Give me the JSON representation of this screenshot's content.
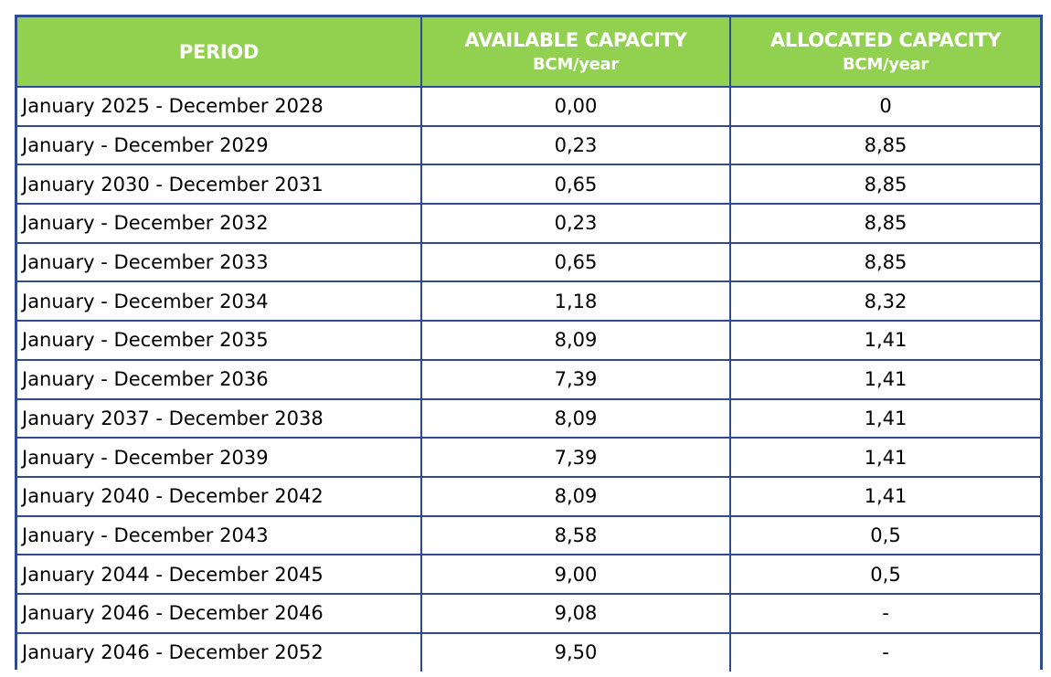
{
  "table": {
    "headers": {
      "period": "PERIOD",
      "available": "AVAILABLE CAPACITY",
      "available_unit": "BCM/year",
      "allocated": "ALLOCATED CAPACITY",
      "allocated_unit": "BCM/year"
    },
    "rows": [
      {
        "period": "January 2025 - December 2028",
        "available": "0,00",
        "allocated": "0"
      },
      {
        "period": "January - December 2029",
        "available": "0,23",
        "allocated": "8,85"
      },
      {
        "period": "January 2030 - December 2031",
        "available": "0,65",
        "allocated": "8,85"
      },
      {
        "period": "January - December 2032",
        "available": "0,23",
        "allocated": "8,85"
      },
      {
        "period": "January - December 2033",
        "available": "0,65",
        "allocated": "8,85"
      },
      {
        "period": "January - December 2034",
        "available": "1,18",
        "allocated": "8,32"
      },
      {
        "period": "January - December 2035",
        "available": "8,09",
        "allocated": "1,41"
      },
      {
        "period": "January - December 2036",
        "available": "7,39",
        "allocated": "1,41"
      },
      {
        "period": "January 2037 - December 2038",
        "available": "8,09",
        "allocated": "1,41"
      },
      {
        "period": "January - December 2039",
        "available": "7,39",
        "allocated": "1,41"
      },
      {
        "period": "January 2040 - December 2042",
        "available": "8,09",
        "allocated": "1,41"
      },
      {
        "period": "January - December 2043",
        "available": "8,58",
        "allocated": "0,5"
      },
      {
        "period": "January 2044 - December 2045",
        "available": "9,00",
        "allocated": "0,5"
      },
      {
        "period": "January 2046 - December 2046",
        "available": "9,08",
        "allocated": "-"
      },
      {
        "period": "January 2046 - December 2052",
        "available": "9,50",
        "allocated": "-"
      }
    ]
  },
  "colors": {
    "header_bg": "#92d050",
    "header_text": "#ffffff",
    "border": "#2e4b8f"
  }
}
